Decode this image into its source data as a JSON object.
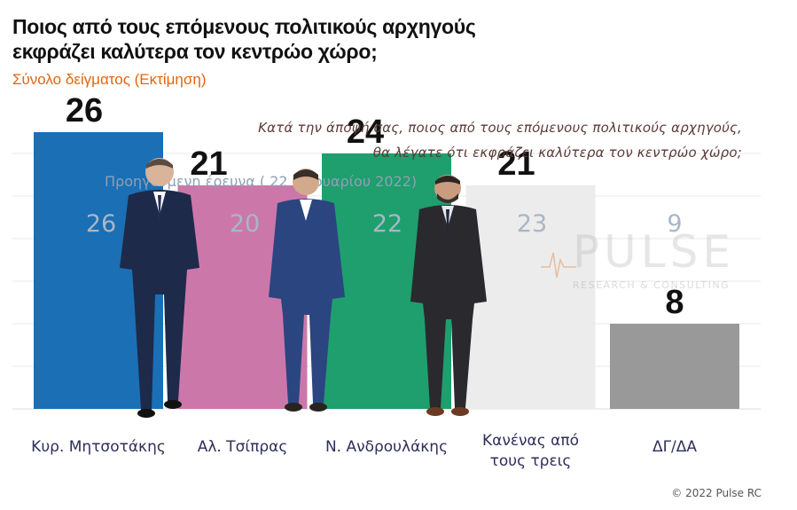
{
  "header": {
    "title": "Ποιος από τους επόμενους πολιτικούς αρχηγούς εκφράζει καλύτερα τον κεντρώο χώρο;",
    "subtitle": "Σύνολο δείγματος (Εκτίμηση)"
  },
  "question": {
    "line1": "Κατά την άποψή σας, ποιος  από τους επόμενους πολιτικούς αρχηγούς,",
    "line2": "θα λέγατε ότι εκφράζει καλύτερα τον κεντρώο χώρο;"
  },
  "previous_survey_label": "Προηγούμενη έρευνα  ( 22 Ιανουαρίου  2022)",
  "watermark": {
    "name": "PULSE",
    "tagline": "RESEARCH & CONSULTING"
  },
  "copyright": "© 2022 Pulse RC",
  "colors": {
    "mitsotakis": "#1a6fb5",
    "tsipras": "#cc77aa",
    "androulakis": "#1f9e6e",
    "none": "#ececec",
    "dk": "#999999",
    "title": "#111111",
    "subtitle": "#e0660f",
    "previous": "#8fa0b4"
  },
  "chart_data": {
    "type": "bar",
    "title": "Ποιος από τους επόμενους πολιτικούς αρχηγούς εκφράζει καλύτερα τον κεντρώο χώρο;",
    "subtitle": "Σύνολο δείγματος (Εκτίμηση)",
    "categories": [
      [
        "Κυρ. Μητσοτάκης"
      ],
      [
        "Αλ. Τσίπρας"
      ],
      [
        "Ν. Ανδρουλάκης"
      ],
      [
        "Κανένας από",
        "τους τρεις"
      ],
      [
        "ΔΓ/ΔΑ"
      ]
    ],
    "series": [
      {
        "values": [
          26,
          21,
          24,
          21,
          8
        ]
      },
      {
        "name": "Προηγούμενη έρευνα  ( 22 Ιανουαρίου  2022)",
        "values": [
          26,
          20,
          22,
          23,
          9
        ]
      }
    ],
    "bar_colors": [
      "#1a6fb5",
      "#cc77aa",
      "#1f9e6e",
      "#ececec",
      "#999999"
    ],
    "ylim": [
      0,
      30
    ],
    "grid": true,
    "xlabel": "",
    "ylabel": ""
  }
}
